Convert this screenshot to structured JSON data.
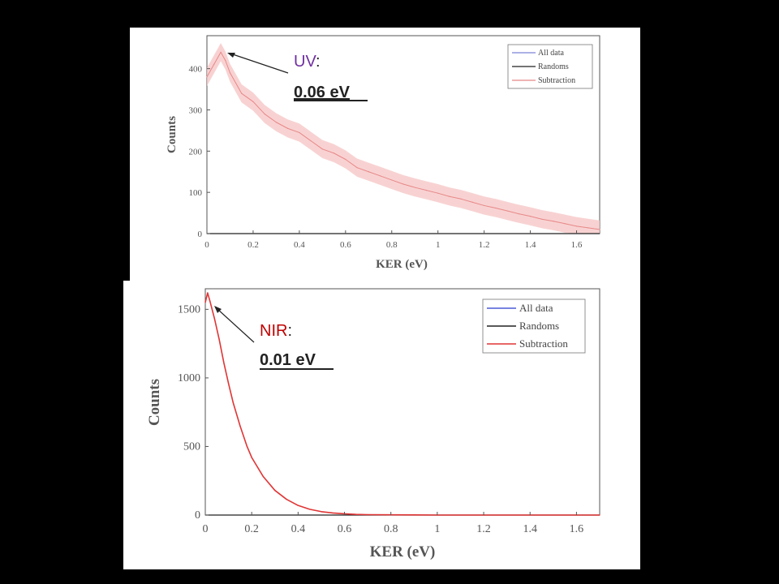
{
  "chart_data": [
    {
      "type": "line",
      "xlabel": "KER (eV)",
      "ylabel": "Counts",
      "xlim": [
        0,
        1.7
      ],
      "ylim": [
        0,
        480
      ],
      "xticks": [
        0,
        0.2,
        0.4,
        0.6,
        0.8,
        1,
        1.2,
        1.4,
        1.6
      ],
      "yticks": [
        0,
        100,
        200,
        300,
        400
      ],
      "legend": {
        "placement": "top-right",
        "entries": [
          "All data",
          "Randoms",
          "Subtraction"
        ]
      },
      "colors": {
        "all": "#7b82d8",
        "randoms": "#222222",
        "subtraction": "#e88888",
        "band": "#f6c7c7"
      },
      "series": [
        {
          "name": "Subtraction",
          "x": [
            0,
            0.03,
            0.06,
            0.08,
            0.1,
            0.15,
            0.2,
            0.25,
            0.3,
            0.35,
            0.4,
            0.45,
            0.5,
            0.55,
            0.6,
            0.65,
            0.7,
            0.75,
            0.8,
            0.85,
            0.9,
            0.95,
            1.0,
            1.05,
            1.1,
            1.15,
            1.2,
            1.25,
            1.3,
            1.35,
            1.4,
            1.45,
            1.5,
            1.55,
            1.6,
            1.65,
            1.7
          ],
          "values": [
            380,
            410,
            440,
            420,
            390,
            340,
            320,
            290,
            270,
            255,
            245,
            225,
            205,
            195,
            180,
            160,
            150,
            140,
            130,
            120,
            112,
            105,
            98,
            90,
            84,
            76,
            68,
            62,
            55,
            48,
            42,
            35,
            30,
            24,
            18,
            14,
            10
          ]
        }
      ],
      "annotation": {
        "label": "UV",
        "colon": ":",
        "value": "0.06 eV",
        "label_color": "#7030a0"
      }
    },
    {
      "type": "line",
      "xlabel": "KER (eV)",
      "ylabel": "Counts",
      "xlim": [
        0,
        1.7
      ],
      "ylim": [
        0,
        1650
      ],
      "xticks": [
        0,
        0.2,
        0.4,
        0.6,
        0.8,
        1,
        1.2,
        1.4,
        1.6
      ],
      "yticks": [
        0,
        500,
        1000,
        1500
      ],
      "legend": {
        "placement": "top-right",
        "entries": [
          "All data",
          "Randoms",
          "Subtraction"
        ]
      },
      "colors": {
        "all": "#4a5bd6",
        "randoms": "#222222",
        "subtraction": "#e03535"
      },
      "series": [
        {
          "name": "Subtraction",
          "x": [
            0,
            0.01,
            0.02,
            0.04,
            0.06,
            0.08,
            0.1,
            0.12,
            0.15,
            0.18,
            0.2,
            0.25,
            0.3,
            0.35,
            0.4,
            0.45,
            0.5,
            0.55,
            0.6,
            0.65,
            0.7,
            0.8,
            0.9,
            1.0,
            1.2,
            1.4,
            1.6,
            1.7
          ],
          "values": [
            1550,
            1620,
            1560,
            1430,
            1280,
            1110,
            960,
            820,
            650,
            500,
            420,
            280,
            180,
            115,
            70,
            42,
            25,
            15,
            9,
            5,
            3,
            2,
            1,
            0,
            0,
            0,
            0,
            0
          ]
        }
      ],
      "annotation": {
        "label": "NIR",
        "colon": ":",
        "value": "0.01 eV",
        "label_color": "#c00000"
      }
    }
  ]
}
